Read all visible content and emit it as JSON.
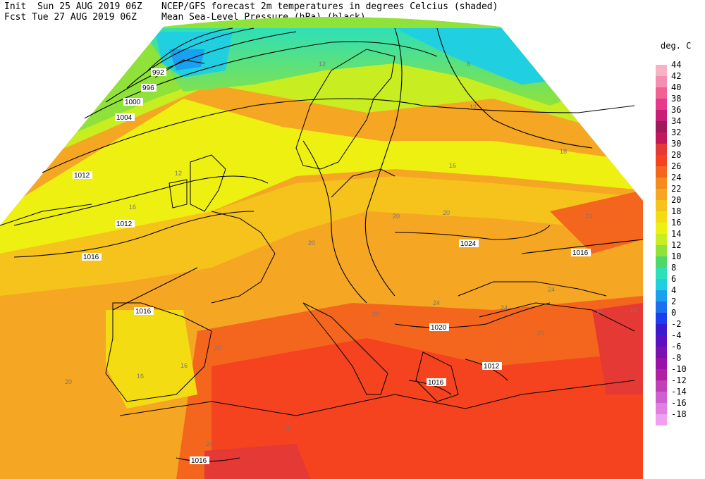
{
  "header": {
    "line1_left": "Init  Sun 25 AUG 2019 06Z",
    "line2_left": "Fcst Tue 27 AUG 2019 06Z",
    "line1_right": "NCEP/GFS forecast 2m temperatures in degrees Celcius (shaded)",
    "line2_right": "Mean Sea-Level Pressure (hPa) (black)."
  },
  "legend": {
    "title": "deg. C",
    "items": [
      {
        "label": "44",
        "color": "#f7b3c4"
      },
      {
        "label": "42",
        "color": "#f48fb1"
      },
      {
        "label": "40",
        "color": "#f06292"
      },
      {
        "label": "38",
        "color": "#e6398c"
      },
      {
        "label": "36",
        "color": "#c81e78"
      },
      {
        "label": "34",
        "color": "#a0195c"
      },
      {
        "label": "32",
        "color": "#c2185b"
      },
      {
        "label": "30",
        "color": "#e53935"
      },
      {
        "label": "28",
        "color": "#f4431e"
      },
      {
        "label": "26",
        "color": "#f4661e"
      },
      {
        "label": "24",
        "color": "#f58a1f"
      },
      {
        "label": "22",
        "color": "#f5a623"
      },
      {
        "label": "20",
        "color": "#f6c21c"
      },
      {
        "label": "18",
        "color": "#f4dc12"
      },
      {
        "label": "16",
        "color": "#eef012"
      },
      {
        "label": "14",
        "color": "#c8ee22"
      },
      {
        "label": "12",
        "color": "#8fe23a"
      },
      {
        "label": "10",
        "color": "#4fd86a"
      },
      {
        "label": "8",
        "color": "#2ee0b8"
      },
      {
        "label": "6",
        "color": "#20d0e0"
      },
      {
        "label": "4",
        "color": "#1aa0f0"
      },
      {
        "label": "2",
        "color": "#1a70f0"
      },
      {
        "label": "0",
        "color": "#1a3ef0"
      },
      {
        "label": "-2",
        "color": "#3a1ad0"
      },
      {
        "label": "-4",
        "color": "#5a10c0"
      },
      {
        "label": "-6",
        "color": "#7a10b0"
      },
      {
        "label": "-8",
        "color": "#9a10a8"
      },
      {
        "label": "-10",
        "color": "#b020a0"
      },
      {
        "label": "-12",
        "color": "#c040b8"
      },
      {
        "label": "-14",
        "color": "#d060d0"
      },
      {
        "label": "-16",
        "color": "#e080e0"
      },
      {
        "label": "-18",
        "color": "#f0a0f0"
      }
    ]
  },
  "isobar_labels": [
    "992",
    "996",
    "1000",
    "1004",
    "1012",
    "1012",
    "1016",
    "1016",
    "1016",
    "1016",
    "1016",
    "1020",
    "1012",
    "1024"
  ],
  "temperature_labels": [
    "8",
    "12",
    "12",
    "12",
    "16",
    "16",
    "18",
    "20",
    "20",
    "20",
    "20",
    "20",
    "24",
    "24",
    "24",
    "24",
    "24",
    "24",
    "20",
    "16",
    "16",
    "16",
    "20",
    "10"
  ]
}
